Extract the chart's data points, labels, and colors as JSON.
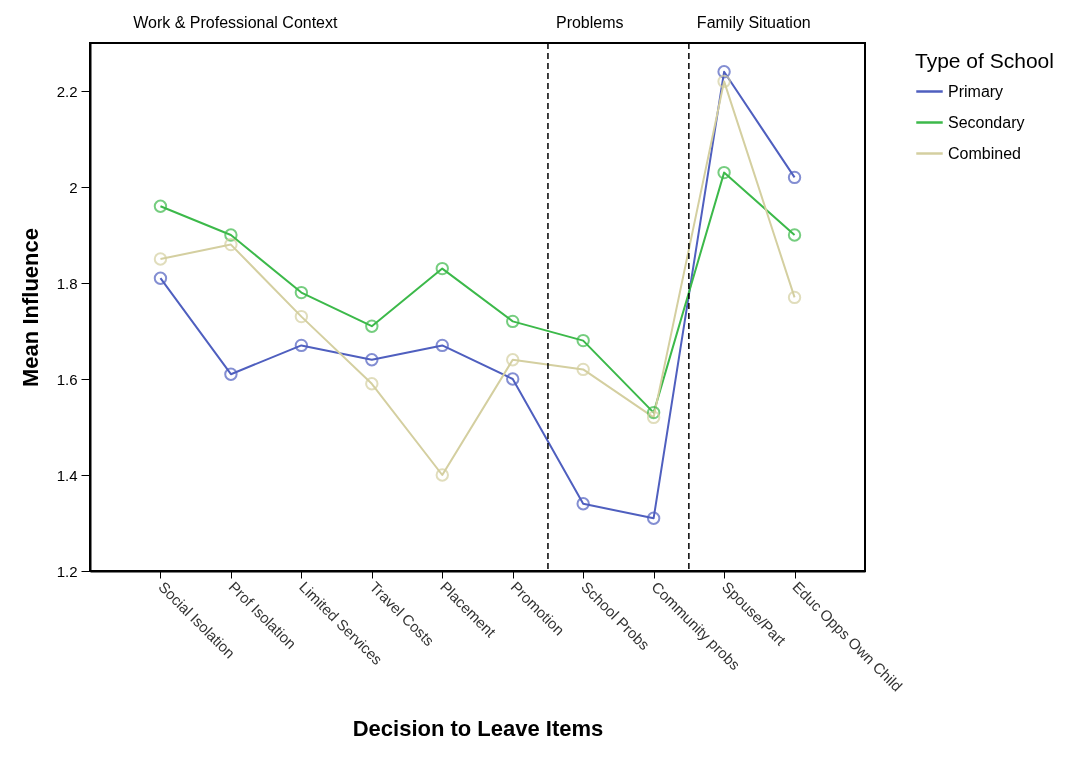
{
  "chart_data": {
    "type": "line",
    "xlabel": "Decision to Leave Items",
    "ylabel": "Mean Influence",
    "legend_title": "Type of School",
    "categories": [
      "Social Isolation",
      "Prof Isolation",
      "Limited Services",
      "Travel Costs",
      "Placement",
      "Promotion",
      "School Probs",
      "Community probs",
      "Spouse/Part",
      "Educ Opps Own Child"
    ],
    "series": [
      {
        "name": "Primary",
        "color": "#4f5fbf",
        "values": [
          1.81,
          1.61,
          1.67,
          1.64,
          1.67,
          1.6,
          1.34,
          1.31,
          2.24,
          2.02
        ]
      },
      {
        "name": "Secondary",
        "color": "#3cb94a",
        "values": [
          1.96,
          1.9,
          1.78,
          1.71,
          1.83,
          1.72,
          1.68,
          1.53,
          2.03,
          1.9
        ]
      },
      {
        "name": "Combined",
        "color": "#d4cfa0",
        "values": [
          1.85,
          1.88,
          1.73,
          1.59,
          1.4,
          1.64,
          1.62,
          1.52,
          2.22,
          1.77
        ]
      }
    ],
    "ylim": [
      1.2,
      2.3
    ],
    "yticks": [
      1.2,
      1.4,
      1.6,
      1.8,
      2,
      2.2
    ],
    "grid": false,
    "legend": "top right",
    "marker": "circle",
    "line_style": "solid",
    "annotations": [
      "Work & Professional Context",
      "Problems",
      "Family Situation"
    ]
  }
}
